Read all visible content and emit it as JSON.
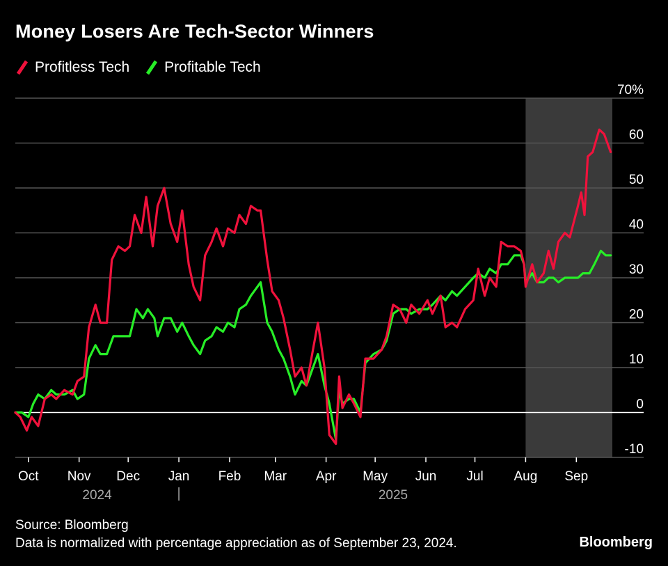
{
  "title": "Money Losers Are Tech-Sector Winners",
  "footer": {
    "source": "Source: Bloomberg",
    "note": "Data is normalized with percentage appreciation as of September 23, 2024.",
    "brand": "Bloomberg"
  },
  "colors": {
    "profitless": "#f0123c",
    "profitable": "#27ee27",
    "shade": "#3a3a3a",
    "grid": "#555555",
    "zero": "#ffffff"
  },
  "chart_data": {
    "type": "line",
    "title": "Money Losers Are Tech-Sector Winners",
    "xlabel": "",
    "ylabel": "",
    "xlim": [
      "2024-09-23",
      "2025-09-23"
    ],
    "ylim": [
      -10,
      70
    ],
    "yticks": [
      {
        "value": 70,
        "label": "70%"
      },
      {
        "value": 60,
        "label": "60"
      },
      {
        "value": 50,
        "label": "50"
      },
      {
        "value": 40,
        "label": "40"
      },
      {
        "value": 30,
        "label": "30"
      },
      {
        "value": 20,
        "label": "20"
      },
      {
        "value": 10,
        "label": "10"
      },
      {
        "value": 0,
        "label": "0"
      },
      {
        "value": -10,
        "label": "-10"
      }
    ],
    "xticks": [
      {
        "date": "2024-10-01",
        "label": "Oct"
      },
      {
        "date": "2024-11-01",
        "label": "Nov"
      },
      {
        "date": "2024-12-01",
        "label": "Dec"
      },
      {
        "date": "2025-01-01",
        "label": "Jan"
      },
      {
        "date": "2025-02-01",
        "label": "Feb"
      },
      {
        "date": "2025-03-01",
        "label": "Mar"
      },
      {
        "date": "2025-04-01",
        "label": "Apr"
      },
      {
        "date": "2025-05-01",
        "label": "May"
      },
      {
        "date": "2025-06-01",
        "label": "Jun"
      },
      {
        "date": "2025-07-01",
        "label": "Jul"
      },
      {
        "date": "2025-08-01",
        "label": "Aug"
      },
      {
        "date": "2025-09-01",
        "label": "Sep"
      }
    ],
    "year_labels": [
      {
        "date": "2024-11-12",
        "label": "2024"
      },
      {
        "date": "2025-05-12",
        "label": "2025"
      }
    ],
    "year_divider": "2025-01-01",
    "shaded_region": {
      "start": "2025-08-01",
      "end": "2025-09-23"
    },
    "grid": true,
    "legend": "top-left",
    "series": [
      {
        "name": "Profitless Tech",
        "color": "#f0123c",
        "points": [
          [
            "2024-09-23",
            0
          ],
          [
            "2024-09-26",
            -1
          ],
          [
            "2024-09-30",
            -4
          ],
          [
            "2024-10-03",
            -1
          ],
          [
            "2024-10-07",
            -3
          ],
          [
            "2024-10-11",
            3
          ],
          [
            "2024-10-15",
            4
          ],
          [
            "2024-10-18",
            3
          ],
          [
            "2024-10-23",
            5
          ],
          [
            "2024-10-28",
            4
          ],
          [
            "2024-10-31",
            7
          ],
          [
            "2024-11-04",
            8
          ],
          [
            "2024-11-07",
            19
          ],
          [
            "2024-11-11",
            24
          ],
          [
            "2024-11-14",
            20
          ],
          [
            "2024-11-18",
            20
          ],
          [
            "2024-11-21",
            34
          ],
          [
            "2024-11-25",
            37
          ],
          [
            "2024-11-29",
            36
          ],
          [
            "2024-12-02",
            37
          ],
          [
            "2024-12-05",
            44
          ],
          [
            "2024-12-09",
            40
          ],
          [
            "2024-12-12",
            48
          ],
          [
            "2024-12-16",
            37
          ],
          [
            "2024-12-19",
            46
          ],
          [
            "2024-12-23",
            50
          ],
          [
            "2024-12-27",
            42
          ],
          [
            "2024-12-31",
            38
          ],
          [
            "2025-01-03",
            45
          ],
          [
            "2025-01-07",
            33
          ],
          [
            "2025-01-10",
            28
          ],
          [
            "2025-01-14",
            25
          ],
          [
            "2025-01-17",
            35
          ],
          [
            "2025-01-21",
            38
          ],
          [
            "2025-01-24",
            41
          ],
          [
            "2025-01-28",
            37
          ],
          [
            "2025-01-31",
            41
          ],
          [
            "2025-02-04",
            40
          ],
          [
            "2025-02-07",
            44
          ],
          [
            "2025-02-11",
            42
          ],
          [
            "2025-02-14",
            46
          ],
          [
            "2025-02-18",
            45
          ],
          [
            "2025-02-20",
            45
          ],
          [
            "2025-02-24",
            34
          ],
          [
            "2025-02-27",
            27
          ],
          [
            "2025-03-03",
            25
          ],
          [
            "2025-03-06",
            21
          ],
          [
            "2025-03-10",
            14
          ],
          [
            "2025-03-13",
            8
          ],
          [
            "2025-03-17",
            10
          ],
          [
            "2025-03-20",
            6
          ],
          [
            "2025-03-24",
            14
          ],
          [
            "2025-03-27",
            20
          ],
          [
            "2025-03-31",
            10
          ],
          [
            "2025-04-03",
            -5
          ],
          [
            "2025-04-07",
            -7
          ],
          [
            "2025-04-09",
            8
          ],
          [
            "2025-04-11",
            1
          ],
          [
            "2025-04-15",
            4
          ],
          [
            "2025-04-18",
            2
          ],
          [
            "2025-04-22",
            -1
          ],
          [
            "2025-04-25",
            12
          ],
          [
            "2025-04-30",
            12
          ],
          [
            "2025-05-05",
            14
          ],
          [
            "2025-05-08",
            17
          ],
          [
            "2025-05-12",
            24
          ],
          [
            "2025-05-16",
            23
          ],
          [
            "2025-05-20",
            20
          ],
          [
            "2025-05-23",
            24
          ],
          [
            "2025-05-28",
            22
          ],
          [
            "2025-06-02",
            25
          ],
          [
            "2025-06-05",
            22
          ],
          [
            "2025-06-10",
            26
          ],
          [
            "2025-06-13",
            19
          ],
          [
            "2025-06-17",
            20
          ],
          [
            "2025-06-20",
            19
          ],
          [
            "2025-06-25",
            23
          ],
          [
            "2025-06-30",
            25
          ],
          [
            "2025-07-03",
            32
          ],
          [
            "2025-07-07",
            26
          ],
          [
            "2025-07-10",
            30
          ],
          [
            "2025-07-14",
            28
          ],
          [
            "2025-07-17",
            38
          ],
          [
            "2025-07-21",
            37
          ],
          [
            "2025-07-25",
            37
          ],
          [
            "2025-07-29",
            36
          ],
          [
            "2025-07-31",
            33
          ],
          [
            "2025-08-01",
            28
          ],
          [
            "2025-08-05",
            33
          ],
          [
            "2025-08-08",
            29
          ],
          [
            "2025-08-12",
            31
          ],
          [
            "2025-08-15",
            36
          ],
          [
            "2025-08-18",
            32
          ],
          [
            "2025-08-21",
            38
          ],
          [
            "2025-08-25",
            40
          ],
          [
            "2025-08-28",
            39
          ],
          [
            "2025-09-02",
            46
          ],
          [
            "2025-09-04",
            49
          ],
          [
            "2025-09-06",
            44
          ],
          [
            "2025-09-08",
            57
          ],
          [
            "2025-09-11",
            58
          ],
          [
            "2025-09-15",
            63
          ],
          [
            "2025-09-18",
            62
          ],
          [
            "2025-09-22",
            58
          ]
        ]
      },
      {
        "name": "Profitable Tech",
        "color": "#27ee27",
        "points": [
          [
            "2024-09-23",
            0
          ],
          [
            "2024-09-27",
            0
          ],
          [
            "2024-10-01",
            -1
          ],
          [
            "2024-10-04",
            2
          ],
          [
            "2024-10-07",
            4
          ],
          [
            "2024-10-11",
            3
          ],
          [
            "2024-10-15",
            5
          ],
          [
            "2024-10-18",
            4
          ],
          [
            "2024-10-23",
            4
          ],
          [
            "2024-10-28",
            5
          ],
          [
            "2024-10-31",
            3
          ],
          [
            "2024-11-04",
            4
          ],
          [
            "2024-11-07",
            12
          ],
          [
            "2024-11-11",
            15
          ],
          [
            "2024-11-14",
            13
          ],
          [
            "2024-11-18",
            13
          ],
          [
            "2024-11-22",
            17
          ],
          [
            "2024-11-26",
            17
          ],
          [
            "2024-12-02",
            17
          ],
          [
            "2024-12-06",
            23
          ],
          [
            "2024-12-10",
            21
          ],
          [
            "2024-12-13",
            23
          ],
          [
            "2024-12-17",
            21
          ],
          [
            "2024-12-19",
            17
          ],
          [
            "2024-12-23",
            21
          ],
          [
            "2024-12-27",
            21
          ],
          [
            "2024-12-31",
            18
          ],
          [
            "2025-01-03",
            20
          ],
          [
            "2025-01-07",
            17
          ],
          [
            "2025-01-10",
            15
          ],
          [
            "2025-01-14",
            13
          ],
          [
            "2025-01-17",
            16
          ],
          [
            "2025-01-21",
            17
          ],
          [
            "2025-01-24",
            19
          ],
          [
            "2025-01-28",
            18
          ],
          [
            "2025-01-31",
            20
          ],
          [
            "2025-02-04",
            19
          ],
          [
            "2025-02-07",
            23
          ],
          [
            "2025-02-11",
            24
          ],
          [
            "2025-02-14",
            26
          ],
          [
            "2025-02-18",
            28
          ],
          [
            "2025-02-20",
            29
          ],
          [
            "2025-02-24",
            20
          ],
          [
            "2025-02-27",
            18
          ],
          [
            "2025-03-03",
            14
          ],
          [
            "2025-03-06",
            12
          ],
          [
            "2025-03-10",
            8
          ],
          [
            "2025-03-13",
            4
          ],
          [
            "2025-03-17",
            7
          ],
          [
            "2025-03-20",
            6
          ],
          [
            "2025-03-24",
            10
          ],
          [
            "2025-03-27",
            13
          ],
          [
            "2025-03-31",
            6
          ],
          [
            "2025-04-03",
            2
          ],
          [
            "2025-04-07",
            -6
          ],
          [
            "2025-04-09",
            5
          ],
          [
            "2025-04-11",
            2
          ],
          [
            "2025-04-15",
            3
          ],
          [
            "2025-04-18",
            3
          ],
          [
            "2025-04-22",
            0
          ],
          [
            "2025-04-25",
            11
          ],
          [
            "2025-04-30",
            13
          ],
          [
            "2025-05-05",
            14
          ],
          [
            "2025-05-08",
            16
          ],
          [
            "2025-05-12",
            22
          ],
          [
            "2025-05-16",
            23
          ],
          [
            "2025-05-20",
            23
          ],
          [
            "2025-05-23",
            22
          ],
          [
            "2025-05-28",
            23
          ],
          [
            "2025-06-02",
            23
          ],
          [
            "2025-06-05",
            24
          ],
          [
            "2025-06-10",
            26
          ],
          [
            "2025-06-13",
            25
          ],
          [
            "2025-06-17",
            27
          ],
          [
            "2025-06-20",
            26
          ],
          [
            "2025-06-25",
            28
          ],
          [
            "2025-06-30",
            30
          ],
          [
            "2025-07-03",
            31
          ],
          [
            "2025-07-07",
            30
          ],
          [
            "2025-07-10",
            32
          ],
          [
            "2025-07-14",
            31
          ],
          [
            "2025-07-17",
            33
          ],
          [
            "2025-07-21",
            33
          ],
          [
            "2025-07-25",
            35
          ],
          [
            "2025-07-29",
            35
          ],
          [
            "2025-07-31",
            33
          ],
          [
            "2025-08-01",
            29
          ],
          [
            "2025-08-05",
            31
          ],
          [
            "2025-08-08",
            29
          ],
          [
            "2025-08-12",
            29
          ],
          [
            "2025-08-15",
            30
          ],
          [
            "2025-08-18",
            30
          ],
          [
            "2025-08-21",
            29
          ],
          [
            "2025-08-25",
            30
          ],
          [
            "2025-08-28",
            30
          ],
          [
            "2025-09-02",
            30
          ],
          [
            "2025-09-05",
            31
          ],
          [
            "2025-09-09",
            31
          ],
          [
            "2025-09-12",
            33
          ],
          [
            "2025-09-16",
            36
          ],
          [
            "2025-09-19",
            35
          ],
          [
            "2025-09-22",
            35
          ]
        ]
      }
    ]
  }
}
